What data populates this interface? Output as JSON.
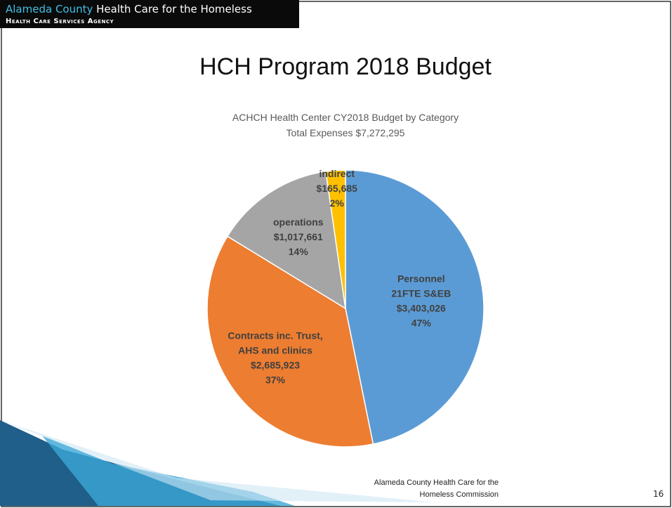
{
  "header": {
    "org_highlight": "Alameda County",
    "org_rest": "Health Care for the Homeless",
    "agency": "Health Care Services Agency"
  },
  "slide_title": "HCH Program 2018 Budget",
  "chart_data": {
    "type": "pie",
    "title": [
      "ACHCH Health Center CY2018 Budget by Category",
      "Total Expenses $7,272,295"
    ],
    "categories": [
      [
        "Personnel",
        "21FTE S&EB"
      ],
      [
        "Contracts inc. Trust,",
        "AHS and clinics"
      ],
      [
        "operations"
      ],
      [
        "indirect"
      ]
    ],
    "values": [
      3403026,
      2685923,
      1017661,
      165685
    ],
    "value_labels": [
      "$3,403,026",
      "$2,685,923",
      "$1,017,661",
      "$165,685"
    ],
    "percent_labels": [
      "47%",
      "37%",
      "14%",
      "2%"
    ],
    "colors": [
      "#5b9bd5",
      "#ed7d31",
      "#a5a5a5",
      "#ffc000"
    ]
  },
  "footer": {
    "lines": [
      "Alameda County Health Care for the",
      "Homeless Commission"
    ],
    "page_number": "16"
  }
}
